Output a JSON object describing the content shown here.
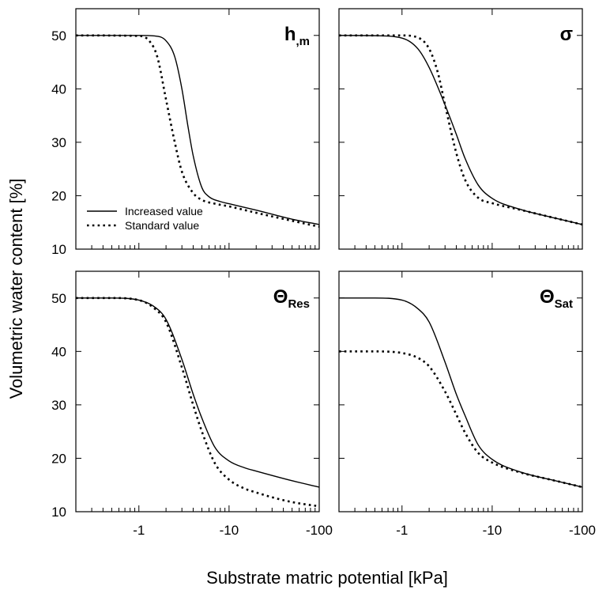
{
  "chart_data": {
    "type": "line",
    "ylabel": "Volumetric water content [%]",
    "xlabel": "Substrate matric potential [kPa]",
    "x_scale": "log-negative",
    "xlim": [
      -0.2,
      -100
    ],
    "ylim": [
      10,
      55
    ],
    "x_ticks": [
      -1,
      -10,
      -100
    ],
    "x_tick_labels": [
      "-1",
      "-10",
      "-100"
    ],
    "y_ticks": [
      10,
      20,
      30,
      40,
      50
    ],
    "y_tick_labels": [
      "10",
      "20",
      "30",
      "40",
      "50"
    ],
    "grid": false,
    "legend": {
      "position": "lower-left of top-left panel",
      "entries": [
        {
          "label": "Increased value",
          "style": "solid"
        },
        {
          "label": "Standard value",
          "style": "dotted"
        }
      ]
    },
    "panels": [
      {
        "id": "hm",
        "label_main": "h",
        "label_sub": ",m",
        "series": [
          {
            "name": "Increased value",
            "style": "solid",
            "x": [
              -0.2,
              -1,
              -1.5,
              -2,
              -2.5,
              -3,
              -3.5,
              -4,
              -5,
              -6,
              -8,
              -10,
              -20,
              -50,
              -100
            ],
            "y": [
              50,
              50,
              49.9,
              49,
              46,
              40,
              33,
              27.5,
              21.5,
              19.8,
              18.9,
              18.5,
              17.3,
              15.6,
              14.6
            ]
          },
          {
            "name": "Standard value",
            "style": "dotted",
            "x": [
              -0.2,
              -1,
              -1.3,
              -1.6,
              -2,
              -2.5,
              -3,
              -4,
              -5,
              -7,
              -10,
              -20,
              -50,
              -100
            ],
            "y": [
              50,
              49.9,
              49,
              46,
              38,
              30,
              24.5,
              20.5,
              19.2,
              18.5,
              18,
              16.8,
              15.3,
              14.2
            ]
          }
        ]
      },
      {
        "id": "sigma",
        "label_main": "σ",
        "label_sub": "",
        "series": [
          {
            "name": "Increased value",
            "style": "solid",
            "x": [
              -0.2,
              -0.5,
              -1,
              -1.5,
              -2,
              -3,
              -4,
              -5,
              -7,
              -10,
              -20,
              -50,
              -100
            ],
            "y": [
              50,
              49.95,
              49.5,
              47.5,
              44,
              37,
              31.5,
              27,
              22,
              19.5,
              17.5,
              15.8,
              14.6
            ]
          },
          {
            "name": "Standard value",
            "style": "dotted",
            "x": [
              -0.2,
              -1,
              -1.5,
              -2,
              -2.5,
              -3,
              -4,
              -5,
              -7,
              -10,
              -20,
              -50,
              -100
            ],
            "y": [
              50,
              50,
              49.6,
              47.5,
              43,
              37,
              28,
              23,
              19.6,
              18.6,
              17.4,
              15.8,
              14.6
            ]
          }
        ]
      },
      {
        "id": "res",
        "label_main": "Θ",
        "label_sub": "Res",
        "series": [
          {
            "name": "Increased value",
            "style": "solid",
            "x": [
              -0.2,
              -0.5,
              -1,
              -1.5,
              -2,
              -3,
              -4,
              -5,
              -7,
              -10,
              -15,
              -20,
              -50,
              -100
            ],
            "y": [
              50,
              50,
              49.6,
              48.3,
              46,
              38.5,
              32,
              27.5,
              22,
              19.5,
              18.2,
              17.6,
              15.8,
              14.6
            ]
          },
          {
            "name": "Standard value",
            "style": "dotted",
            "x": [
              -0.2,
              -0.5,
              -1,
              -1.5,
              -2,
              -3,
              -4,
              -5,
              -7,
              -10,
              -15,
              -20,
              -30,
              -50,
              -100
            ],
            "y": [
              50,
              50,
              49.6,
              48,
              45.5,
              37,
              30,
              25,
              19,
              16,
              14.3,
              13.6,
              12.7,
              11.8,
              11
            ]
          }
        ]
      },
      {
        "id": "sat",
        "label_main": "Θ",
        "label_sub": "Sat",
        "series": [
          {
            "name": "Increased value",
            "style": "solid",
            "x": [
              -0.2,
              -0.5,
              -1,
              -1.5,
              -2,
              -3,
              -4,
              -5,
              -7,
              -10,
              -20,
              -50,
              -100
            ],
            "y": [
              50,
              50,
              49.6,
              48,
              45.5,
              38,
              32,
              28,
              22.5,
              19.8,
              17.5,
              15.8,
              14.6
            ]
          },
          {
            "name": "Standard value",
            "style": "dotted",
            "x": [
              -0.2,
              -0.5,
              -1,
              -1.5,
              -2,
              -3,
              -4,
              -5,
              -7,
              -10,
              -20,
              -50,
              -100
            ],
            "y": [
              40,
              40,
              39.7,
              38.8,
              37.2,
              32.5,
              28.2,
              24.8,
              21,
              19.2,
              17.4,
              15.8,
              14.6
            ]
          }
        ]
      }
    ]
  }
}
